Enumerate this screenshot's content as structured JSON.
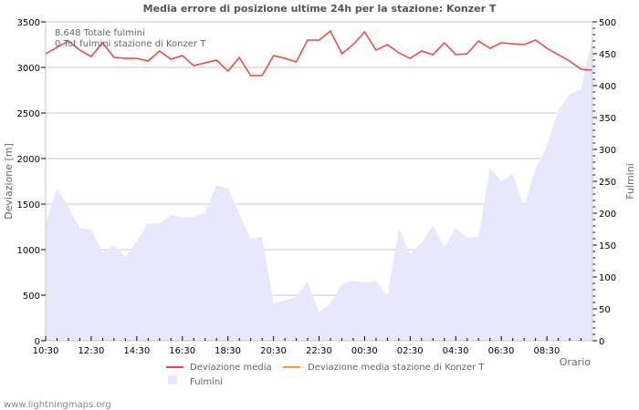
{
  "title": "Media errore di posizione ultime 24h per la stazione: Konzer T",
  "annotations": {
    "total_strikes": "8.648 Totale fulmini",
    "station_strikes": "0 Tot fulmini stazione di Konzer T"
  },
  "y_left_label": "Deviazione  [m]",
  "y_right_label": "Fulmini",
  "x_label": "Orario",
  "legend": {
    "dev": "Deviazione media",
    "dev_station": "Deviazione media stazione di Konzer T",
    "strikes": "Fulmini"
  },
  "footer": "www.lightningmaps.org",
  "colors": {
    "dev": "#ee4444",
    "dev_station": "#ff9944",
    "strikes": "#e8e8fc",
    "grid": "#c8c8c8"
  },
  "chart_data": {
    "type": "line",
    "title": "Media errore di posizione ultime 24h per la stazione: Konzer T",
    "xlabel": "Orario",
    "ylabel": "Deviazione  [m]",
    "y2label": "Fulmini",
    "ylim": [
      0,
      3500
    ],
    "y2lim": [
      0,
      500
    ],
    "yticks": [
      0,
      500,
      1000,
      1500,
      2000,
      2500,
      3000,
      3500
    ],
    "y2ticks": [
      0,
      50,
      100,
      150,
      200,
      250,
      300,
      350,
      400,
      450,
      500
    ],
    "xticks": [
      "10:30",
      "12:30",
      "14:30",
      "16:30",
      "18:30",
      "20:30",
      "22:30",
      "00:30",
      "02:30",
      "04:30",
      "06:30",
      "08:30"
    ],
    "grid": true,
    "legend_position": "bottom",
    "series": [
      {
        "name": "Deviazione media",
        "axis": "left",
        "type": "line",
        "values": [
          3150,
          3220,
          3290,
          3190,
          3120,
          3270,
          3110,
          3100,
          3100,
          3070,
          3180,
          3090,
          3130,
          3020,
          3050,
          3080,
          2960,
          3110,
          2910,
          2910,
          3130,
          3100,
          3060,
          3300,
          3300,
          3400,
          3150,
          3250,
          3390,
          3190,
          3250,
          3160,
          3100,
          3180,
          3140,
          3270,
          3140,
          3150,
          3290,
          3210,
          3270,
          3260,
          3250,
          3300,
          3210,
          3140,
          3070,
          2980,
          2970
        ]
      },
      {
        "name": "Deviazione media stazione di Konzer T",
        "axis": "left",
        "type": "line",
        "values": []
      },
      {
        "name": "Fulmini",
        "axis": "right",
        "type": "area",
        "values": [
          184,
          239,
          209,
          177,
          174,
          139,
          150,
          131,
          156,
          184,
          184,
          197,
          194,
          194,
          201,
          244,
          239,
          199,
          160,
          163,
          59,
          63,
          69,
          93,
          44,
          59,
          89,
          94,
          91,
          94,
          70,
          176,
          136,
          154,
          181,
          146,
          177,
          161,
          163,
          271,
          250,
          261,
          210,
          270,
          306,
          361,
          387,
          394,
          477
        ]
      }
    ]
  }
}
